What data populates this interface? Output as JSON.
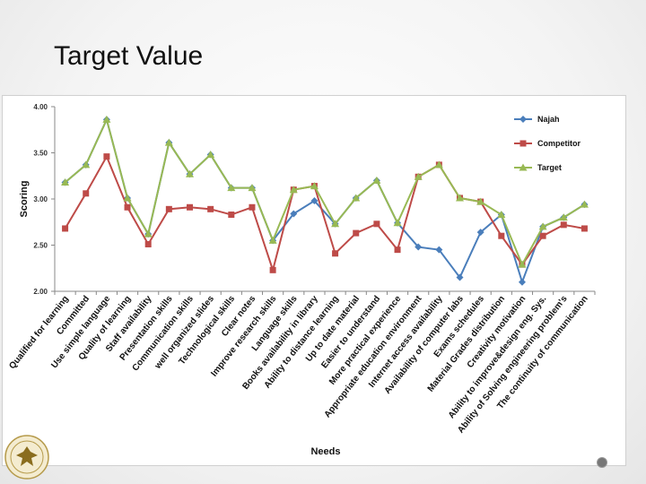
{
  "slide": {
    "title": "Target Value"
  },
  "chart_data": {
    "type": "line",
    "ylabel": "Scoring",
    "xlabel": "Needs",
    "ylim": [
      2.0,
      4.0
    ],
    "yticks": [
      "2.00",
      "2.50",
      "3.00",
      "3.50",
      "4.00"
    ],
    "legend_position": "right",
    "categories": [
      "Qualified for learning",
      "Committed",
      "Use simple language",
      "Quality of learning",
      "Staff availability",
      "Presentation skills",
      "Communication skills",
      "well organized slides",
      "Technological skills",
      "Clear notes",
      "Improve research skills",
      "Language skills",
      "Books availability in library",
      "Ability to distance learning",
      "Up to date material",
      "Easier to understand",
      "More practical experience",
      "Appropriate education environment",
      "Internet access availability",
      "Availability of computer labs",
      "Exams schedules",
      "Material Grades distribution",
      "Creativity motivation",
      "Ability to improve&design eng. Sys.",
      "Ability of Solving engineering problem's",
      "The continuity of communication"
    ],
    "series": [
      {
        "name": "Najah",
        "color": "#4a7ebb",
        "marker": "diamond",
        "values": [
          3.18,
          3.37,
          3.86,
          3.01,
          2.62,
          3.61,
          3.27,
          3.48,
          3.12,
          3.12,
          2.55,
          2.84,
          2.98,
          2.73,
          3.01,
          3.2,
          2.74,
          2.48,
          2.45,
          2.15,
          2.64,
          2.83,
          2.1,
          2.7,
          2.8,
          2.94
        ]
      },
      {
        "name": "Competitor",
        "color": "#be4b48",
        "marker": "square",
        "values": [
          2.68,
          3.06,
          3.46,
          2.91,
          2.51,
          2.89,
          2.91,
          2.89,
          2.83,
          2.91,
          2.23,
          3.1,
          3.14,
          2.41,
          2.63,
          2.73,
          2.45,
          3.24,
          3.37,
          3.01,
          2.97,
          2.6,
          2.29,
          2.6,
          2.72,
          2.68
        ]
      },
      {
        "name": "Target",
        "color": "#98b954",
        "marker": "triangle",
        "values": [
          3.18,
          3.37,
          3.86,
          3.01,
          2.62,
          3.61,
          3.27,
          3.48,
          3.12,
          3.12,
          2.55,
          3.1,
          3.14,
          2.73,
          3.01,
          3.2,
          2.74,
          3.24,
          3.37,
          3.01,
          2.97,
          2.83,
          2.29,
          2.7,
          2.8,
          2.94
        ]
      }
    ]
  }
}
